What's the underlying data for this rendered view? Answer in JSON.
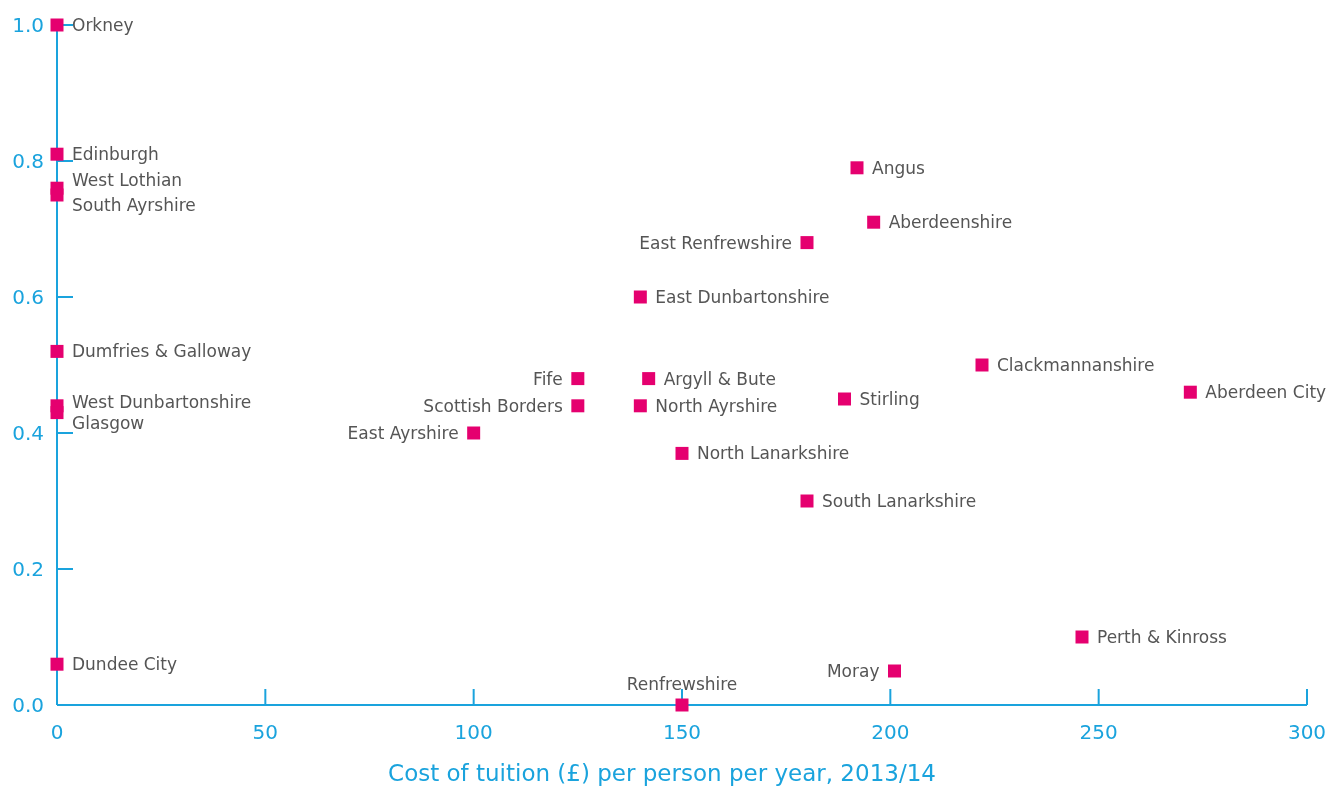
{
  "chart_data": {
    "type": "scatter",
    "xlabel": "Cost of tuition (£) per person per year, 2013/14",
    "x": [
      0,
      0,
      0,
      0,
      0,
      0,
      0,
      0,
      192,
      196,
      180,
      140,
      125,
      142,
      125,
      140,
      100,
      150,
      180,
      222,
      272,
      189,
      246,
      201,
      150
    ],
    "values": [
      1.0,
      0.81,
      0.76,
      0.75,
      0.52,
      0.44,
      0.43,
      0.06,
      0.79,
      0.71,
      0.68,
      0.6,
      0.48,
      0.48,
      0.44,
      0.44,
      0.4,
      0.37,
      0.3,
      0.5,
      0.46,
      0.45,
      0.1,
      0.05,
      0.0
    ],
    "color": "#e5006f",
    "marker": "square",
    "grid": false,
    "xlim": [
      0,
      300
    ],
    "xticks": [
      0,
      50,
      100,
      150,
      200,
      250,
      300
    ],
    "ylim": [
      0,
      1
    ],
    "yticks": [
      {
        "value": 0,
        "label": "0.0"
      },
      {
        "value": 0.2,
        "label": "0.2"
      },
      {
        "value": 0.4,
        "label": "0.4"
      },
      {
        "value": 0.6,
        "label": "0.6"
      },
      {
        "value": 0.8,
        "label": "0.8"
      },
      {
        "value": 1,
        "label": "1.0"
      }
    ],
    "annotations": [
      {
        "text": "Orkney",
        "x": 0,
        "y": 1.0
      },
      {
        "text": "Edinburgh",
        "x": 0,
        "y": 0.81
      },
      {
        "text": "West Lothian",
        "x": 0,
        "y": 0.76
      },
      {
        "text": "South Ayrshire",
        "x": 0,
        "y": 0.75
      },
      {
        "text": "Dumfries & Galloway",
        "x": 0,
        "y": 0.52
      },
      {
        "text": "West Dunbartonshire",
        "x": 0,
        "y": 0.44
      },
      {
        "text": "Glasgow",
        "x": 0,
        "y": 0.43
      },
      {
        "text": "Dundee City",
        "x": 0,
        "y": 0.06
      },
      {
        "text": "Angus",
        "x": 192,
        "y": 0.79
      },
      {
        "text": "Aberdeenshire",
        "x": 196,
        "y": 0.71
      },
      {
        "text": "East Renfrewshire",
        "x": 180,
        "y": 0.68
      },
      {
        "text": "East Dunbartonshire",
        "x": 140,
        "y": 0.6
      },
      {
        "text": "Fife",
        "x": 125,
        "y": 0.48
      },
      {
        "text": "Argyll & Bute",
        "x": 142,
        "y": 0.48
      },
      {
        "text": "Scottish Borders",
        "x": 125,
        "y": 0.44
      },
      {
        "text": "North Ayrshire",
        "x": 140,
        "y": 0.44
      },
      {
        "text": "East Ayrshire",
        "x": 100,
        "y": 0.4
      },
      {
        "text": "North Lanarkshire",
        "x": 150,
        "y": 0.37
      },
      {
        "text": "South Lanarkshire",
        "x": 180,
        "y": 0.3
      },
      {
        "text": "Clackmannanshire",
        "x": 222,
        "y": 0.5
      },
      {
        "text": "Aberdeen City",
        "x": 272,
        "y": 0.46
      },
      {
        "text": "Stirling",
        "x": 189,
        "y": 0.45
      },
      {
        "text": "Perth & Kinross",
        "x": 246,
        "y": 0.1
      },
      {
        "text": "Moray",
        "x": 201,
        "y": 0.05
      },
      {
        "text": "Renfrewshire",
        "x": 150,
        "y": 0.0
      }
    ]
  }
}
